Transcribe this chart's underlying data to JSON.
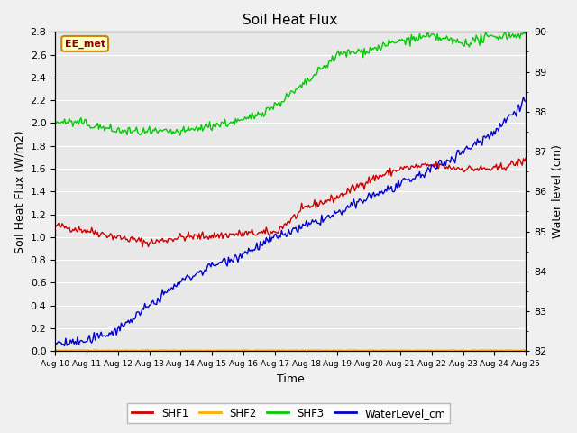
{
  "title": "Soil Heat Flux",
  "xlabel": "Time",
  "ylabel_left": "Soil Heat Flux (W/m2)",
  "ylabel_right": "Water level (cm)",
  "annotation": "EE_met",
  "ylim_left": [
    0.0,
    2.8
  ],
  "ylim_right": [
    82.0,
    90.0
  ],
  "yticks_left": [
    0.0,
    0.2,
    0.4,
    0.6,
    0.8,
    1.0,
    1.2,
    1.4,
    1.6,
    1.8,
    2.0,
    2.2,
    2.4,
    2.6,
    2.8
  ],
  "yticks_right": [
    82.0,
    83.0,
    84.0,
    85.0,
    86.0,
    87.0,
    88.0,
    89.0,
    90.0
  ],
  "xtick_labels": [
    "Aug 10",
    "Aug 11",
    "Aug 12",
    "Aug 13",
    "Aug 14",
    "Aug 15",
    "Aug 16",
    "Aug 17",
    "Aug 18",
    "Aug 19",
    "Aug 20",
    "Aug 21",
    "Aug 22",
    "Aug 23",
    "Aug 24",
    "Aug 25"
  ],
  "colors": {
    "SHF1": "#cc0000",
    "SHF2": "#ffaa00",
    "SHF3": "#00cc00",
    "WaterLevel_cm": "#0000cc"
  },
  "background_color": "#e8e8e8",
  "grid_color": "#ffffff",
  "fig_bg": "#f0f0f0",
  "n_days": 16
}
